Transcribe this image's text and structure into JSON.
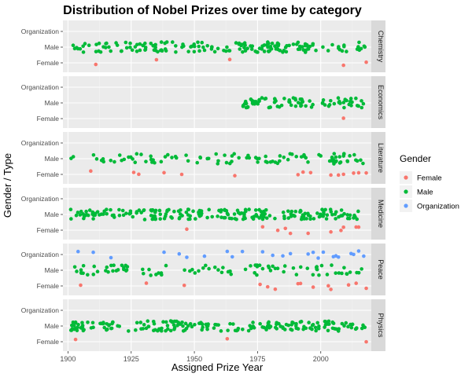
{
  "chart_data": {
    "type": "scatter",
    "title": "Distribution of Nobel Prizes over time by category",
    "xlabel": "Assigned Prize Year",
    "ylabel": "Gender / Type",
    "x_ticks": [
      1900,
      1925,
      1950,
      1975,
      2000
    ],
    "xlim": [
      1898,
      2020
    ],
    "y_levels": [
      "Female",
      "Male",
      "Organization"
    ],
    "legend": {
      "title": "Gender",
      "position": "right",
      "entries": [
        {
          "label": "Female",
          "color": "#F8766D"
        },
        {
          "label": "Male",
          "color": "#00BA38"
        },
        {
          "label": "Organization",
          "color": "#619CFF"
        }
      ]
    },
    "grid": true,
    "facets": [
      {
        "category": "Chemistry",
        "female_years": [
          1911,
          1935,
          1964,
          2009,
          2018
        ],
        "organization_years": [],
        "male_range": [
          1901,
          2018
        ],
        "male_count": 175
      },
      {
        "category": "Economics",
        "female_years": [
          2009
        ],
        "organization_years": [],
        "male_range": [
          1969,
          2018
        ],
        "male_count": 80
      },
      {
        "category": "Literature",
        "female_years": [
          1909,
          1926,
          1928,
          1938,
          1945,
          1966,
          1991,
          1993,
          1996,
          2004,
          2007,
          2009,
          2013,
          2015,
          2018
        ],
        "organization_years": [],
        "male_range": [
          1901,
          2018
        ],
        "male_count": 100
      },
      {
        "category": "Medicine",
        "female_years": [
          1947,
          1977,
          1983,
          1986,
          1988,
          1995,
          2004,
          2008,
          2009,
          2014,
          2015
        ],
        "organization_years": [],
        "male_range": [
          1901,
          2018
        ],
        "male_count": 205
      },
      {
        "category": "Peace",
        "female_years": [
          1905,
          1931,
          1946,
          1976,
          1979,
          1982,
          1991,
          1992,
          1997,
          2003,
          2004,
          2011,
          2014,
          2018
        ],
        "organization_years": [
          1904,
          1910,
          1917,
          1938,
          1944,
          1947,
          1954,
          1963,
          1965,
          1969,
          1977,
          1981,
          1985,
          1988,
          1995,
          1997,
          1999,
          2001,
          2005,
          2006,
          2007,
          2012,
          2013,
          2015,
          2017
        ],
        "male_range": [
          1901,
          2018
        ],
        "male_count": 90
      },
      {
        "category": "Physics",
        "female_years": [
          1903,
          1963,
          2018
        ],
        "organization_years": [],
        "male_range": [
          1901,
          2018
        ],
        "male_count": 200
      }
    ]
  }
}
